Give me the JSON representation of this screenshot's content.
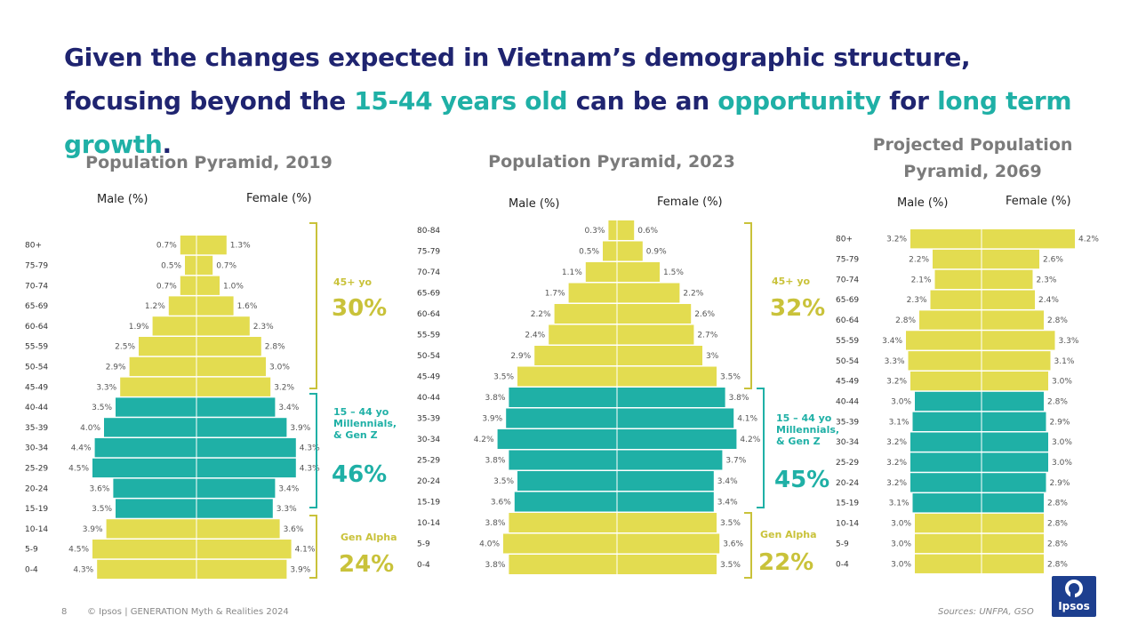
{
  "headline": {
    "part1": "Given the changes expected in Vietnam’s demographic structure, focusing beyond the ",
    "hl1": "15-44 years old",
    "part2": " can be an ",
    "hl2": "opportunity",
    "part3": " for ",
    "hl3": "long term growth",
    "part4": "."
  },
  "colors": {
    "headline": "#1f2470",
    "accent_teal": "#1fb0a6",
    "bar_yellow": "#e3dc50",
    "bar_teal": "#1fb0a6",
    "bracket_yellow": "#c9c23a",
    "bracket_teal": "#1fb0a6"
  },
  "footer": {
    "page_number": "8",
    "copyright": "© Ipsos | GENERATION Myth & Realities 2024",
    "sources": "Sources: UNFPA, GSO",
    "logo_text": "Ipsos"
  },
  "chart_data": [
    {
      "type": "bar",
      "title": "Population Pyramid, 2019",
      "male_label": "Male (%)",
      "female_label": "Female (%)",
      "categories": [
        "80+",
        "75-79",
        "70-74",
        "65-69",
        "60-64",
        "55-59",
        "50-54",
        "45-49",
        "40-44",
        "35-39",
        "30-34",
        "25-29",
        "20-24",
        "15-19",
        "10-14",
        "5-9",
        "0-4"
      ],
      "series": [
        {
          "name": "Male (%)",
          "values": [
            0.7,
            0.5,
            0.7,
            1.2,
            1.9,
            2.5,
            2.9,
            3.3,
            3.5,
            4.0,
            4.4,
            4.5,
            3.6,
            3.5,
            3.9,
            4.5,
            4.3
          ],
          "labels": [
            "0.7%",
            "0.5%",
            "0.7%",
            "1.2%",
            "1.9%",
            "2.5%",
            "2.9%",
            "3.3%",
            "3.5%",
            "4.0%",
            "4.4%",
            "4.5%",
            "3.6%",
            "3.5%",
            "3.9%",
            "4.5%",
            "4.3%"
          ]
        },
        {
          "name": "Female (%)",
          "values": [
            1.3,
            0.7,
            1.0,
            1.6,
            2.3,
            2.8,
            3.0,
            3.2,
            3.4,
            3.9,
            4.3,
            4.3,
            3.4,
            3.3,
            3.6,
            4.1,
            3.9
          ],
          "labels": [
            "1.3%",
            "0.7%",
            "1.0%",
            "1.6%",
            "2.3%",
            "2.8%",
            "3.0%",
            "3.2%",
            "3.4%",
            "3.9%",
            "4.3%",
            "4.3%",
            "3.4%",
            "3.3%",
            "3.6%",
            "4.1%",
            "3.9%"
          ]
        }
      ],
      "groups": [
        {
          "label": "45+ yo",
          "pct": "30%",
          "from": "80+",
          "to": "45-49",
          "color": "yellow"
        },
        {
          "label": "15 – 44 yo Millennials, & Gen Z",
          "pct": "46%",
          "from": "40-44",
          "to": "15-19",
          "color": "teal"
        },
        {
          "label": "Gen Alpha",
          "pct": "24%",
          "from": "10-14",
          "to": "0-4",
          "color": "yellow"
        }
      ]
    },
    {
      "type": "bar",
      "title": "Population Pyramid, 2023",
      "male_label": "Male (%)",
      "female_label": "Female (%)",
      "categories": [
        "80-84",
        "75-79",
        "70-74",
        "65-69",
        "60-64",
        "55-59",
        "50-54",
        "45-49",
        "40-44",
        "35-39",
        "30-34",
        "25-29",
        "20-24",
        "15-19",
        "10-14",
        "5-9",
        "0-4"
      ],
      "series": [
        {
          "name": "Male (%)",
          "values": [
            0.3,
            0.5,
            1.1,
            1.7,
            2.2,
            2.4,
            2.9,
            3.5,
            3.8,
            3.9,
            4.2,
            3.8,
            3.5,
            3.6,
            3.8,
            4.0,
            3.8
          ],
          "labels": [
            "0.3%",
            "0.5%",
            "1.1%",
            "1.7%",
            "2.2%",
            "2.4%",
            "2.9%",
            "3.5%",
            "3.8%",
            "3.9%",
            "4.2%",
            "3.8%",
            "3.5%",
            "3.6%",
            "3.8%",
            "4.0%",
            "3.8%"
          ]
        },
        {
          "name": "Female (%)",
          "values": [
            0.6,
            0.9,
            1.5,
            2.2,
            2.6,
            2.7,
            3,
            3.5,
            3.8,
            4.1,
            4.2,
            3.7,
            3.4,
            3.4,
            3.5,
            3.6,
            3.5
          ],
          "labels": [
            "0.6%",
            "0.9%",
            "1.5%",
            "2.2%",
            "2.6%",
            "2.7%",
            "3%",
            "3.5%",
            "3.8%",
            "4.1%",
            "4.2%",
            "3.7%",
            "3.4%",
            "3.4%",
            "3.5%",
            "3.6%",
            "3.5%"
          ]
        }
      ],
      "groups": [
        {
          "label": "45+ yo",
          "pct": "32%",
          "from": "80-84",
          "to": "45-49",
          "color": "yellow"
        },
        {
          "label": "15 – 44 yo Millennials, & Gen Z",
          "pct": "45%",
          "from": "40-44",
          "to": "15-19",
          "color": "teal"
        },
        {
          "label": "Gen Alpha",
          "pct": "22%",
          "from": "10-14",
          "to": "0-4",
          "color": "yellow"
        }
      ]
    },
    {
      "type": "bar",
      "title": "Projected Population Pyramid, 2069",
      "male_label": "Male (%)",
      "female_label": "Female (%)",
      "categories": [
        "80+",
        "75-79",
        "70-74",
        "65-69",
        "60-64",
        "55-59",
        "50-54",
        "45-49",
        "40-44",
        "35-39",
        "30-34",
        "25-29",
        "20-24",
        "15-19",
        "10-14",
        "5-9",
        "0-4"
      ],
      "series": [
        {
          "name": "Male (%)",
          "values": [
            3.2,
            2.2,
            2.1,
            2.3,
            2.8,
            3.4,
            3.3,
            3.2,
            3.0,
            3.1,
            3.2,
            3.2,
            3.2,
            3.1,
            3.0,
            3.0,
            3.0
          ],
          "labels": [
            "3.2%",
            "2.2%",
            "2.1%",
            "2.3%",
            "2.8%",
            "3.4%",
            "3.3%",
            "3.2%",
            "3.0%",
            "3.1%",
            "3.2%",
            "3.2%",
            "3.2%",
            "3.1%",
            "3.0%",
            "3.0%",
            "3.0%"
          ]
        },
        {
          "name": "Female (%)",
          "values": [
            4.2,
            2.6,
            2.3,
            2.4,
            2.8,
            3.3,
            3.1,
            3.0,
            2.8,
            2.9,
            3.0,
            3.0,
            2.9,
            2.8,
            2.8,
            2.8,
            2.8
          ],
          "labels": [
            "4.2%",
            "2.6%",
            "2.3%",
            "2.4%",
            "2.8%",
            "3.3%",
            "3.1%",
            "3.0%",
            "2.8%",
            "2.9%",
            "3.0%",
            "3.0%",
            "2.9%",
            "2.8%",
            "2.8%",
            "2.8%",
            "2.8%"
          ]
        }
      ],
      "teal_categories": [
        "40-44",
        "35-39",
        "30-34",
        "25-29",
        "20-24",
        "15-19"
      ]
    }
  ]
}
